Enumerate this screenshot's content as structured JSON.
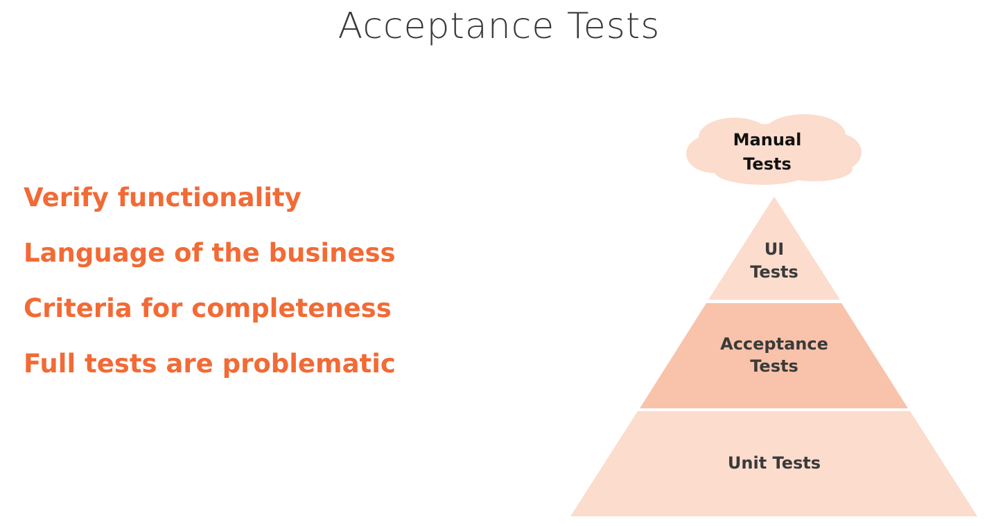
{
  "title": "Acceptance Tests",
  "bullets": [
    "Verify functionality",
    "Language of the business",
    "Criteria for completeness",
    "Full tests are problematic"
  ],
  "pyramid": {
    "cloud": [
      "Manual",
      "Tests"
    ],
    "top": [
      "UI",
      "Tests"
    ],
    "middle": [
      "Acceptance",
      "Tests"
    ],
    "bottom": [
      "Unit Tests"
    ]
  },
  "colors": {
    "accent": "#f26a35",
    "tier_light": "#fbdccd",
    "tier_highlight": "#f8c3aa",
    "text": "#3a3a3a"
  }
}
